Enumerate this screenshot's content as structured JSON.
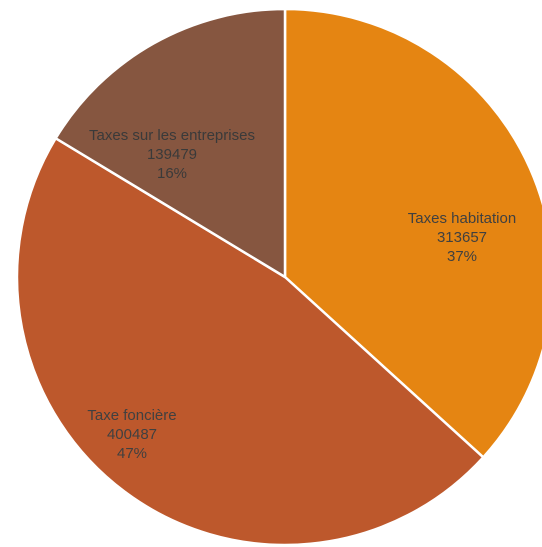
{
  "chart_data": {
    "type": "pie",
    "title": "",
    "categories": [
      "Taxes habitation",
      "Taxe foncière",
      "Taxes sur les entreprises"
    ],
    "values": [
      313657,
      400487,
      139479
    ],
    "percent_labels": [
      "37%",
      "47%",
      "16%"
    ],
    "value_labels": [
      "313657",
      "400487",
      "139479"
    ],
    "colors": [
      "#E58512",
      "#BD582C",
      "#865640"
    ],
    "start_angle_deg": 0,
    "direction": "clockwise",
    "legend": "none",
    "data_labels": "inside"
  }
}
